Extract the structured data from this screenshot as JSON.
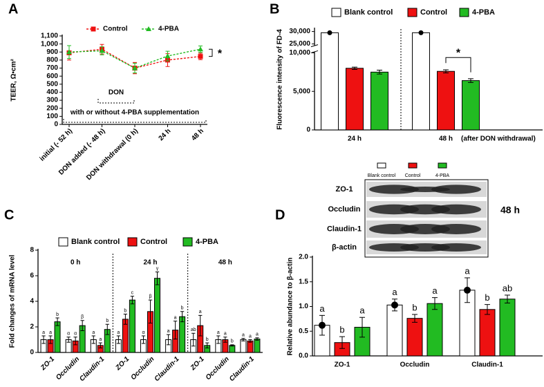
{
  "chart_data": [
    {
      "type": "line",
      "panel": "A",
      "ylabel": "TEER, Ω•cm²",
      "categories": [
        "initial (- 52 h)",
        "DON added (- 48 h)",
        "DON withdrawal (0 h)",
        "24 h",
        "48 h"
      ],
      "series": [
        {
          "name": "Control",
          "color": "#ee1111",
          "marker": "square",
          "values": [
            890,
            935,
            700,
            800,
            845
          ],
          "errors": [
            90,
            60,
            70,
            80,
            40
          ]
        },
        {
          "name": "4-PBA",
          "color": "#22bb22",
          "marker": "triangle",
          "values": [
            900,
            915,
            700,
            850,
            935
          ],
          "errors": [
            80,
            50,
            60,
            60,
            40
          ]
        }
      ],
      "ylim": [
        0,
        1100
      ],
      "yticks": [
        0,
        100,
        200,
        300,
        400,
        500,
        600,
        700,
        800,
        900,
        {
          "value": 1000,
          "label": "1,000"
        },
        {
          "value": 1100,
          "label": "1,100"
        }
      ],
      "annotations": [
        "DON",
        "with or without 4-PBA supplementation",
        "*"
      ]
    },
    {
      "type": "bar",
      "panel": "B",
      "ylabel": "Fluorescence intensity of FD-4",
      "categories": [
        "24 h",
        "48 h"
      ],
      "x_annotation": "(after DON withdrawal)",
      "series": [
        {
          "name": "Blank control",
          "color": "#ffffff",
          "marker": "dot",
          "values": [
            29500,
            29500
          ]
        },
        {
          "name": "Control",
          "color": "#ee1111",
          "values": [
            8000,
            7600
          ],
          "errors": [
            150,
            200
          ]
        },
        {
          "name": "4-PBA",
          "color": "#22bb22",
          "values": [
            7500,
            6400
          ],
          "errors": [
            250,
            250
          ]
        }
      ],
      "ylim": [
        0,
        31000
      ],
      "ybreak": [
        10000,
        25000
      ],
      "yticks": [
        0,
        {
          "value": 5000,
          "label": "5,000"
        },
        {
          "value": 10000,
          "label": "10,000"
        },
        {
          "value": 25000,
          "label": "25,000"
        },
        {
          "value": 30000,
          "label": "30,000"
        }
      ],
      "annotations": [
        "*"
      ]
    },
    {
      "type": "bar",
      "panel": "C",
      "ylabel": "Fold changes of mRNA level",
      "panels": [
        "0 h",
        "24 h",
        "48 h"
      ],
      "categories": [
        "ZO-1",
        "Occludin",
        "Claudin-1",
        "ZO-1",
        "Occludin",
        "Claudin-1",
        "ZO-1",
        "Occludin",
        "Claudin-1"
      ],
      "series": [
        {
          "name": "Blank control",
          "color": "#ffffff",
          "values": [
            1.0,
            1.0,
            1.0,
            1.0,
            1.0,
            1.0,
            1.0,
            1.0,
            1.0
          ],
          "errors": [
            0.3,
            0.2,
            0.3,
            0.3,
            0.3,
            0.4,
            0.5,
            0.3,
            0.1
          ],
          "letters": [
            "a",
            "α",
            "a",
            "a",
            "α",
            "a",
            "ab",
            "a",
            "a"
          ]
        },
        {
          "name": "Control",
          "color": "#ee1111",
          "values": [
            1.0,
            0.9,
            0.55,
            2.6,
            3.2,
            1.75,
            2.1,
            1.0,
            0.9
          ],
          "errors": [
            0.3,
            0.3,
            0.2,
            0.4,
            0.9,
            0.7,
            0.8,
            0.2,
            0.1
          ],
          "letters": [
            "a",
            "α",
            "a",
            "b",
            "β",
            "a",
            "a",
            "a",
            "a"
          ]
        },
        {
          "name": "4-PBA",
          "color": "#22bb22",
          "values": [
            2.4,
            2.1,
            1.8,
            4.1,
            5.8,
            2.8,
            0.55,
            0.55,
            1.05
          ],
          "errors": [
            0.3,
            0.4,
            0.4,
            0.3,
            0.5,
            0.4,
            0.2,
            0.05,
            0.1
          ],
          "letters": [
            "b",
            "β",
            "b",
            "c",
            "γ",
            "b",
            "b",
            "b",
            "a"
          ]
        }
      ],
      "ylim": [
        0,
        8
      ],
      "yticks": [
        0,
        2,
        4,
        6,
        8
      ]
    },
    {
      "type": "bar",
      "panel": "D",
      "ylabel": "Relative abundance to β-actin",
      "categories": [
        "ZO-1",
        "Occludin",
        "Claudin-1"
      ],
      "series": [
        {
          "name": "Blank control",
          "color": "#ffffff",
          "marker": "dot",
          "values": [
            0.62,
            1.03,
            1.33
          ],
          "errors": [
            0.2,
            0.12,
            0.25
          ],
          "letters": [
            "a",
            "a",
            "a"
          ]
        },
        {
          "name": "Control",
          "color": "#ee1111",
          "values": [
            0.27,
            0.76,
            0.94
          ],
          "errors": [
            0.12,
            0.08,
            0.1
          ],
          "letters": [
            "b",
            "b",
            "b"
          ]
        },
        {
          "name": "4-PBA",
          "color": "#22bb22",
          "values": [
            0.58,
            1.06,
            1.15
          ],
          "errors": [
            0.2,
            0.12,
            0.08
          ],
          "letters": [
            "a",
            "a",
            "ab"
          ]
        }
      ],
      "ylim": [
        0,
        2
      ],
      "yticks": [
        {
          "value": 0,
          "label": "0.0"
        },
        0.5,
        {
          "value": 1,
          "label": "1.0"
        },
        1.5,
        {
          "value": 2,
          "label": "2.0"
        }
      ],
      "blot": {
        "rows": [
          "ZO-1",
          "Occludin",
          "Claudin-1",
          "β-actin"
        ],
        "time": "48 h"
      }
    }
  ]
}
